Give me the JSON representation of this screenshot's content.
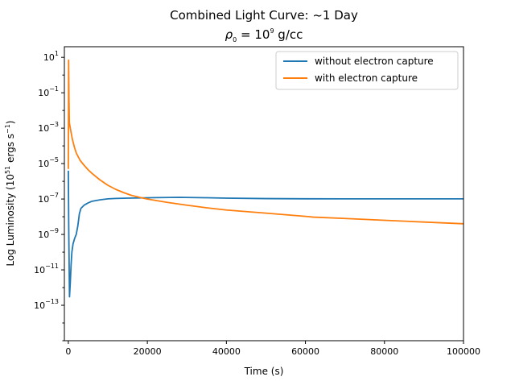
{
  "chart_data": {
    "type": "line",
    "title": "Combined Light Curve: ~1 Day",
    "subtitle": {
      "base": "ρ",
      "base_sub": "0",
      "eq": " = 10",
      "exp": "9",
      "unit": " g/cc"
    },
    "xlabel": "Time (s)",
    "ylabel": {
      "pre": "Log Luminosity (10",
      "exp1": "51",
      "mid": " ergs s",
      "exp2": "−1",
      "post": ")"
    },
    "xlim": [
      -1000,
      100000
    ],
    "ylog": true,
    "ylim_log10": [
      -15,
      1.6
    ],
    "x_ticks": [
      {
        "value": 0,
        "label": "0"
      },
      {
        "value": 20000,
        "label": "20000"
      },
      {
        "value": 40000,
        "label": "40000"
      },
      {
        "value": 60000,
        "label": "60000"
      },
      {
        "value": 80000,
        "label": "80000"
      },
      {
        "value": 100000,
        "label": "100000"
      }
    ],
    "y_ticks": [
      {
        "exp": 1,
        "base": "10",
        "sup": "1"
      },
      {
        "exp": -1,
        "base": "10",
        "sup": "−1"
      },
      {
        "exp": -3,
        "base": "10",
        "sup": "−3"
      },
      {
        "exp": -5,
        "base": "10",
        "sup": "−5"
      },
      {
        "exp": -7,
        "base": "10",
        "sup": "−7"
      },
      {
        "exp": -9,
        "base": "10",
        "sup": "−9"
      },
      {
        "exp": -11,
        "base": "10",
        "sup": "−11"
      },
      {
        "exp": -13,
        "base": "10",
        "sup": "−13"
      }
    ],
    "legend_position": "top-right",
    "series": [
      {
        "name": "without electron capture",
        "color": "#1f77b4",
        "points": [
          [
            0,
            4e-06
          ],
          [
            120,
            1e-09
          ],
          [
            300,
            3e-13
          ],
          [
            500,
            2e-12
          ],
          [
            700,
            2e-11
          ],
          [
            900,
            1e-10
          ],
          [
            1200,
            3e-10
          ],
          [
            1600,
            6e-10
          ],
          [
            2000,
            1e-09
          ],
          [
            2400,
            3e-09
          ],
          [
            2800,
            1.5e-08
          ],
          [
            3200,
            3e-08
          ],
          [
            4000,
            4.5e-08
          ],
          [
            5000,
            6e-08
          ],
          [
            6000,
            7.5e-08
          ],
          [
            8000,
            9e-08
          ],
          [
            10000,
            1.02e-07
          ],
          [
            12000,
            1.08e-07
          ],
          [
            15000,
            1.12e-07
          ],
          [
            18000,
            1.15e-07
          ],
          [
            22000,
            1.2e-07
          ],
          [
            28000,
            1.25e-07
          ],
          [
            35000,
            1.18e-07
          ],
          [
            40000,
            1.12e-07
          ],
          [
            50000,
            1.06e-07
          ],
          [
            60000,
            1.03e-07
          ],
          [
            70000,
            1.02e-07
          ],
          [
            80000,
            1.02e-07
          ],
          [
            90000,
            1.02e-07
          ],
          [
            100000,
            1.02e-07
          ]
        ]
      },
      {
        "name": "with electron capture",
        "color": "#ff7f0e",
        "points": [
          [
            0,
            5e-06
          ],
          [
            80,
            7
          ],
          [
            160,
            0.05
          ],
          [
            260,
            0.002
          ],
          [
            500,
            0.001
          ],
          [
            1000,
            0.00025
          ],
          [
            1500,
            9e-05
          ],
          [
            2000,
            4e-05
          ],
          [
            3000,
            1.5e-05
          ],
          [
            4000,
            8e-06
          ],
          [
            5000,
            4.5e-06
          ],
          [
            6000,
            2.8e-06
          ],
          [
            8000,
            1.2e-06
          ],
          [
            10000,
            6e-07
          ],
          [
            12000,
            3.5e-07
          ],
          [
            14000,
            2.3e-07
          ],
          [
            16000,
            1.6e-07
          ],
          [
            18000,
            1.25e-07
          ],
          [
            20000,
            1e-07
          ],
          [
            25000,
            6.5e-08
          ],
          [
            30000,
            4.5e-08
          ],
          [
            35000,
            3.2e-08
          ],
          [
            40000,
            2.4e-08
          ],
          [
            50000,
            1.6e-08
          ],
          [
            60000,
            1.05e-08
          ],
          [
            62000,
            9.5e-09
          ],
          [
            70000,
            8e-09
          ],
          [
            80000,
            6.3e-09
          ],
          [
            90000,
            5e-09
          ],
          [
            100000,
            4e-09
          ]
        ]
      }
    ]
  }
}
